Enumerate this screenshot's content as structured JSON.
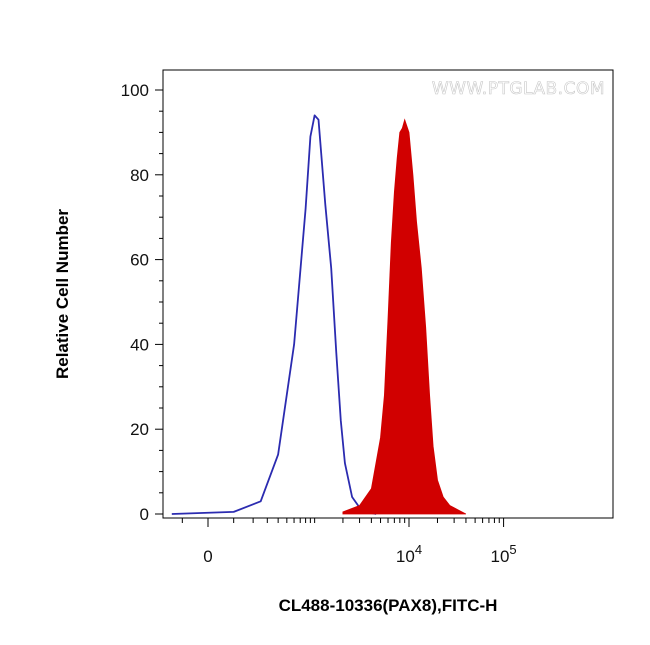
{
  "watermark": "WWW.PTGLAB.COM",
  "chart_data": {
    "type": "area",
    "xlabel": "CL488-10336(PAX8),FITC-H",
    "ylabel": "Relative Cell Number",
    "ylim": [
      0,
      100
    ],
    "y_ticks": [
      "0",
      "20",
      "40",
      "60",
      "80",
      "100"
    ],
    "x_ticks": [
      {
        "base": "0",
        "exp": ""
      },
      {
        "base": "10",
        "exp": "4"
      },
      {
        "base": "10",
        "exp": "5"
      }
    ],
    "grid": false,
    "series": [
      {
        "style": "outline",
        "color": "#2b2bb0",
        "x": [
          -150,
          100,
          250,
          400,
          600,
          800,
          900,
          1000,
          1100,
          1300,
          1500,
          1700,
          1900,
          2100,
          2500,
          3000,
          3500,
          4500
        ],
        "y": [
          0,
          0.5,
          3,
          14,
          40,
          72,
          89,
          94,
          93,
          73,
          58,
          38,
          22,
          12,
          4,
          1.5,
          0.5,
          0
        ]
      },
      {
        "style": "filled",
        "color": "#d10000",
        "x": [
          2000,
          3000,
          4000,
          5000,
          5500,
          6000,
          6500,
          7000,
          7500,
          8000,
          8500,
          9000,
          10000,
          11000,
          12000,
          13500,
          15000,
          16500,
          18000,
          20000,
          23000,
          27000,
          33000,
          40000
        ],
        "y": [
          0.5,
          2,
          6,
          18,
          28,
          46,
          64,
          76,
          84,
          90,
          91,
          93,
          90,
          80,
          69,
          58,
          44,
          28,
          16,
          8,
          4,
          2,
          1,
          0
        ]
      }
    ]
  }
}
